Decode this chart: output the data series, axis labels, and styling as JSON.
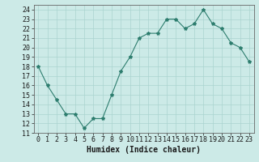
{
  "x": [
    0,
    1,
    2,
    3,
    4,
    5,
    6,
    7,
    8,
    9,
    10,
    11,
    12,
    13,
    14,
    15,
    16,
    17,
    18,
    19,
    20,
    21,
    22,
    23
  ],
  "y": [
    18,
    16,
    14.5,
    13,
    13,
    11.5,
    12.5,
    12.5,
    15,
    17.5,
    19,
    21,
    21.5,
    21.5,
    23,
    23,
    22,
    22.5,
    24,
    22.5,
    22,
    20.5,
    20,
    18.5
  ],
  "line_color": "#2d7d6e",
  "marker": "*",
  "marker_size": 3,
  "bg_color": "#cceae7",
  "grid_color": "#aad4cf",
  "xlabel": "Humidex (Indice chaleur)",
  "xlim": [
    -0.5,
    23.5
  ],
  "ylim": [
    11,
    24.5
  ],
  "yticks": [
    11,
    12,
    13,
    14,
    15,
    16,
    17,
    18,
    19,
    20,
    21,
    22,
    23,
    24
  ],
  "xticks": [
    0,
    1,
    2,
    3,
    4,
    5,
    6,
    7,
    8,
    9,
    10,
    11,
    12,
    13,
    14,
    15,
    16,
    17,
    18,
    19,
    20,
    21,
    22,
    23
  ],
  "font_size": 6,
  "xlabel_font_size": 7,
  "line_width": 0.8
}
